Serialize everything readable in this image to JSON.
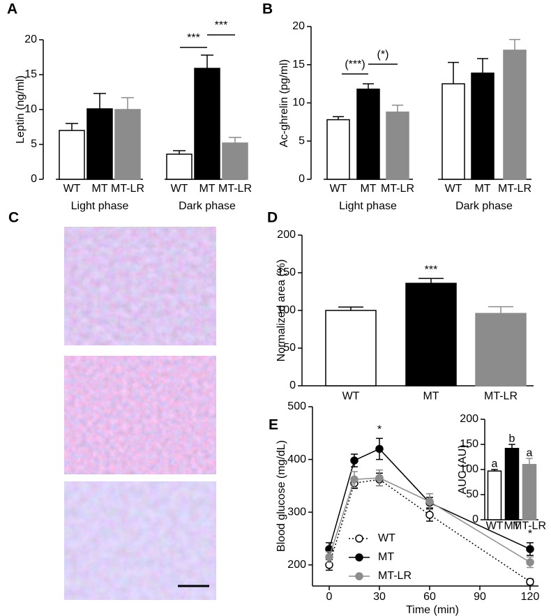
{
  "chart_data": [
    {
      "panel": "A",
      "type": "grouped_bar",
      "ylabel": "Leptin (ng/ml)",
      "ylim": [
        0,
        20
      ],
      "yticks": [
        0,
        5,
        10,
        15,
        20
      ],
      "colors": [
        "#ffffff",
        "#000000",
        "#8c8c8c"
      ],
      "groups": [
        {
          "name": "Light phase",
          "categories": [
            "WT",
            "MT",
            "MT-LR"
          ],
          "values": [
            7.0,
            10.1,
            10.0
          ],
          "errors": [
            1.0,
            2.2,
            1.7
          ]
        },
        {
          "name": "Dark phase",
          "categories": [
            "WT",
            "MT",
            "MT-LR"
          ],
          "values": [
            3.6,
            15.9,
            5.2
          ],
          "errors": [
            0.5,
            1.9,
            0.8
          ]
        }
      ],
      "comparisons": [
        "***",
        "***"
      ]
    },
    {
      "panel": "B",
      "type": "grouped_bar",
      "ylabel": "Ac-ghrelin (pg/ml)",
      "ylim": [
        0,
        20
      ],
      "yticks": [
        0,
        5,
        10,
        15,
        20
      ],
      "colors": [
        "#ffffff",
        "#000000",
        "#8c8c8c"
      ],
      "groups": [
        {
          "name": "Light phase",
          "categories": [
            "WT",
            "MT",
            "MT-LR"
          ],
          "values": [
            7.8,
            11.8,
            8.8
          ],
          "errors": [
            0.4,
            0.7,
            0.9
          ]
        },
        {
          "name": "Dark phase",
          "categories": [
            "WT",
            "MT",
            "MT-LR"
          ],
          "values": [
            12.5,
            13.9,
            16.9
          ],
          "errors": [
            2.8,
            1.9,
            1.4
          ]
        }
      ],
      "comparisons": [
        "(***)",
        "(*)"
      ]
    },
    {
      "panel": "C",
      "type": "micrograph"
    },
    {
      "panel": "D",
      "type": "bar",
      "ylabel": "Normalized area (%)",
      "ylim": [
        0,
        200
      ],
      "yticks": [
        0,
        50,
        100,
        150,
        200
      ],
      "categories": [
        "WT",
        "MT",
        "MT-LR"
      ],
      "values": [
        100,
        136,
        96
      ],
      "errors": [
        4.5,
        6.5,
        9
      ],
      "colors": [
        "#ffffff",
        "#000000",
        "#8c8c8c"
      ],
      "annotations": [
        null,
        "***",
        null
      ]
    },
    {
      "panel": "E",
      "type": "line",
      "xlabel": "Time (min)",
      "ylabel": "Blood glucose (mg/dL)",
      "x": [
        0,
        15,
        30,
        60,
        120
      ],
      "xlim": [
        -10,
        125
      ],
      "xticks": [
        0,
        30,
        60,
        90,
        120
      ],
      "ylim": [
        160,
        500
      ],
      "yticks": [
        200,
        300,
        400,
        500
      ],
      "series": [
        {
          "name": "WT",
          "color": "#000000",
          "marker": "open",
          "dash": "dotted",
          "values": [
            200,
            355,
            362,
            295,
            168
          ],
          "errors": [
            10,
            10,
            12,
            12,
            5
          ]
        },
        {
          "name": "MT",
          "color": "#000000",
          "marker": "filled",
          "dash": "solid",
          "values": [
            230,
            398,
            420,
            318,
            230
          ],
          "errors": [
            12,
            12,
            20,
            10,
            12
          ]
        },
        {
          "name": "MT-LR",
          "color": "#8c8c8c",
          "marker": "filled",
          "dash": "solid",
          "values": [
            215,
            362,
            365,
            320,
            205
          ],
          "errors": [
            10,
            15,
            15,
            15,
            10
          ]
        }
      ],
      "annotations": [
        null,
        null,
        "*",
        null,
        "*"
      ],
      "inset": {
        "type": "bar",
        "ylabel": "AUC (AU)",
        "ylim": [
          0,
          200
        ],
        "yticks": [
          0,
          50,
          100,
          150,
          200
        ],
        "categories": [
          "WT",
          "MT",
          "MT-LR"
        ],
        "values": [
          97,
          142,
          110
        ],
        "errors": [
          3,
          8,
          12
        ],
        "labels": [
          "a",
          "b",
          "a"
        ],
        "colors": [
          "#ffffff",
          "#000000",
          "#8c8c8c"
        ]
      }
    }
  ]
}
